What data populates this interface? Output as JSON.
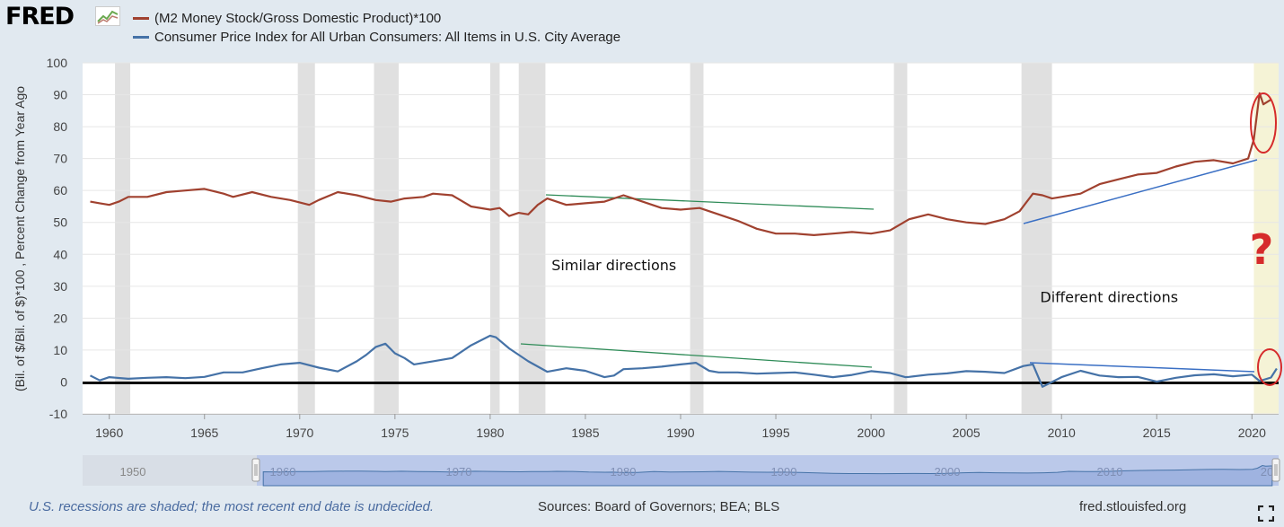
{
  "header": {
    "logo_text": "FRED",
    "logo_icon": "line-chart-icon"
  },
  "legend": [
    {
      "label": "(M2 Money Stock/Gross Domestic Product)*100",
      "color": "#a0412f"
    },
    {
      "label": "Consumer Price Index for All Urban Consumers: All Items in U.S. City Average",
      "color": "#4572a7"
    }
  ],
  "colors": {
    "background": "#e1e9f0",
    "plot_background": "#ffffff",
    "recession": "#e0e0e0",
    "current_period": "#f5f3d6",
    "m2_series": "#a0412f",
    "cpi_series": "#4572a7",
    "annotation_red": "#d62b2b",
    "trend_green": "#2e8b57",
    "trend_blue": "#3a6fc4",
    "navigator": "#b8c7ea"
  },
  "chart_data": {
    "type": "line",
    "ylabel": "(Bil. of $/Bil. of $)*100 , Percent Change from Year Ago",
    "xlabel": "",
    "ylim": [
      -10,
      100
    ],
    "xlim": [
      1958.6,
      2021.4
    ],
    "yticks": [
      -10,
      0,
      10,
      20,
      30,
      40,
      50,
      60,
      70,
      80,
      90,
      100
    ],
    "xticks": [
      1960,
      1965,
      1970,
      1975,
      1980,
      1985,
      1990,
      1995,
      2000,
      2005,
      2010,
      2015,
      2020
    ],
    "grid": true,
    "legend_position": "top",
    "recessions": [
      [
        1960.3,
        1961.1
      ],
      [
        1969.9,
        1970.8
      ],
      [
        1973.9,
        1975.2
      ],
      [
        1980.0,
        1980.5
      ],
      [
        1981.5,
        1982.9
      ],
      [
        1990.5,
        1991.2
      ],
      [
        2001.2,
        2001.9
      ],
      [
        2007.9,
        2009.5
      ],
      [
        2020.1,
        2021.4
      ]
    ],
    "series": [
      {
        "name": "(M2 Money Stock/Gross Domestic Product)*100",
        "x": [
          1959.0,
          1959.5,
          1960.0,
          1960.5,
          1961.0,
          1962.0,
          1963.0,
          1964.0,
          1965.0,
          1966.0,
          1966.5,
          1967.5,
          1968.5,
          1969.5,
          1970.5,
          1971.0,
          1972.0,
          1973.0,
          1974.0,
          1974.8,
          1975.5,
          1976.5,
          1977.0,
          1978.0,
          1979.0,
          1980.0,
          1980.5,
          1981.0,
          1981.5,
          1982.0,
          1982.5,
          1983.0,
          1984.0,
          1985.0,
          1986.0,
          1987.0,
          1988.0,
          1989.0,
          1990.0,
          1991.0,
          1992.0,
          1993.0,
          1994.0,
          1995.0,
          1996.0,
          1997.0,
          1998.0,
          1999.0,
          2000.0,
          2001.0,
          2002.0,
          2003.0,
          2004.0,
          2005.0,
          2006.0,
          2007.0,
          2007.8,
          2008.5,
          2009.0,
          2009.5,
          2010.0,
          2011.0,
          2012.0,
          2013.0,
          2014.0,
          2015.0,
          2016.0,
          2017.0,
          2018.0,
          2019.0,
          2019.8,
          2020.1,
          2020.4,
          2020.6,
          2021.0
        ],
        "values": [
          56.5,
          56.0,
          55.5,
          56.5,
          58.0,
          58.0,
          59.5,
          60.0,
          60.5,
          59.0,
          58.0,
          59.5,
          58.0,
          57.0,
          55.5,
          57.0,
          59.5,
          58.5,
          57.0,
          56.5,
          57.5,
          58.0,
          59.0,
          58.5,
          55.0,
          54.0,
          54.5,
          52.0,
          53.0,
          52.5,
          55.5,
          57.5,
          55.5,
          56.0,
          56.5,
          58.5,
          56.5,
          54.5,
          54.0,
          54.5,
          52.5,
          50.5,
          48.0,
          46.5,
          46.5,
          46.0,
          46.5,
          47.0,
          46.5,
          47.5,
          51.0,
          52.5,
          51.0,
          50.0,
          49.5,
          51.0,
          53.5,
          59.0,
          58.5,
          57.5,
          58.0,
          59.0,
          62.0,
          63.5,
          65.0,
          65.5,
          67.5,
          69.0,
          69.5,
          68.5,
          70.0,
          76.0,
          90.5,
          87.0,
          88.5
        ]
      },
      {
        "name": "Consumer Price Index for All Urban Consumers: All Items in U.S. City Average",
        "x": [
          1959.0,
          1959.5,
          1960.0,
          1961.0,
          1962.0,
          1963.0,
          1964.0,
          1965.0,
          1966.0,
          1967.0,
          1968.0,
          1969.0,
          1970.0,
          1971.0,
          1972.0,
          1973.0,
          1973.5,
          1974.0,
          1974.5,
          1975.0,
          1975.5,
          1976.0,
          1977.0,
          1978.0,
          1979.0,
          1980.0,
          1980.3,
          1981.0,
          1982.0,
          1983.0,
          1984.0,
          1985.0,
          1986.0,
          1986.5,
          1987.0,
          1988.0,
          1989.0,
          1990.0,
          1990.8,
          1991.5,
          1992.0,
          1993.0,
          1994.0,
          1995.0,
          1996.0,
          1997.0,
          1998.0,
          1999.0,
          2000.0,
          2001.0,
          2001.8,
          2002.0,
          2003.0,
          2004.0,
          2005.0,
          2006.0,
          2007.0,
          2008.0,
          2008.5,
          2009.0,
          2009.5,
          2010.0,
          2011.0,
          2012.0,
          2013.0,
          2014.0,
          2015.0,
          2016.0,
          2017.0,
          2018.0,
          2019.0,
          2020.0,
          2020.4,
          2021.0,
          2021.3
        ],
        "values": [
          2.0,
          0.5,
          1.5,
          1.0,
          1.3,
          1.5,
          1.2,
          1.6,
          3.0,
          3.0,
          4.3,
          5.5,
          6.0,
          4.5,
          3.3,
          6.5,
          8.5,
          11.0,
          12.0,
          9.0,
          7.5,
          5.5,
          6.5,
          7.5,
          11.5,
          14.5,
          14.0,
          10.5,
          6.5,
          3.2,
          4.3,
          3.5,
          1.5,
          2.0,
          4.0,
          4.3,
          4.8,
          5.5,
          6.0,
          3.5,
          3.0,
          3.0,
          2.6,
          2.8,
          3.0,
          2.3,
          1.5,
          2.2,
          3.4,
          2.8,
          1.5,
          1.6,
          2.3,
          2.7,
          3.4,
          3.2,
          2.8,
          5.0,
          5.5,
          -1.5,
          0.0,
          1.5,
          3.5,
          2.0,
          1.5,
          1.6,
          0.1,
          1.3,
          2.1,
          2.4,
          1.8,
          2.3,
          0.3,
          1.4,
          4.2
        ]
      }
    ],
    "annotations": [
      {
        "text": "Similar directions",
        "x": 1986.5,
        "y": 35
      },
      {
        "text": "Different directions",
        "x": 2012.5,
        "y": 25
      },
      {
        "text": "?",
        "x": 2020.5,
        "y": 37
      }
    ]
  },
  "navigator": {
    "ticks": [
      "1950",
      "1960",
      "1970",
      "1980",
      "1990",
      "2000",
      "2010",
      "20"
    ]
  },
  "footer": {
    "note": "U.S. recessions are shaded; the most recent end date is undecided.",
    "sources": "Sources: Board of Governors; BEA; BLS",
    "url": "fred.stlouisfed.org",
    "fullscreen_icon": "fullscreen-icon"
  }
}
